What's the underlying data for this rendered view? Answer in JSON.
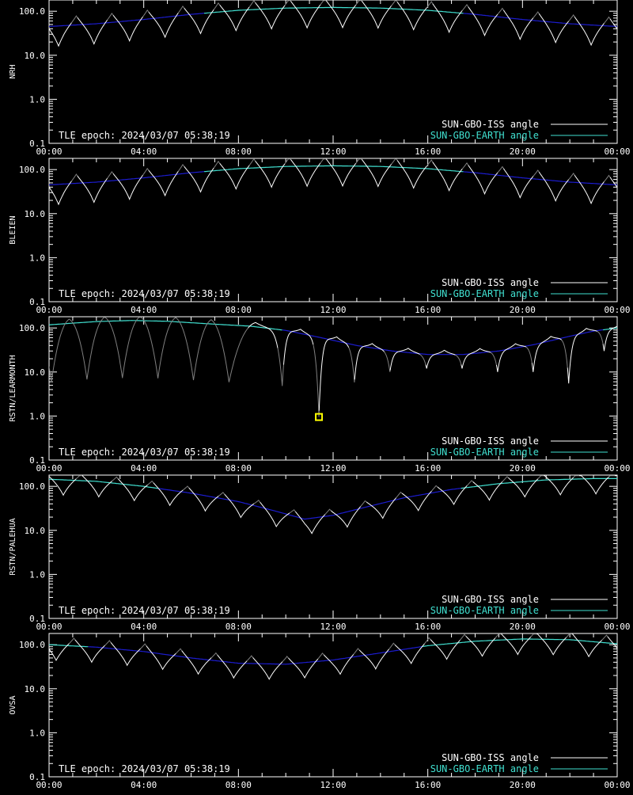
{
  "figure": {
    "background": "#000000",
    "axis_color": "#ffffff",
    "colors": {
      "iss_visible": "#ffffff",
      "iss_shadow": "#808080",
      "earth": "#40e0d0",
      "earth_low": "#1c1cd0",
      "marker": "#ffff00"
    }
  },
  "chart_data": [
    {
      "type": "line",
      "ylabel": "NRH",
      "x_tick_labels": [
        "00:00",
        "04:00",
        "08:00",
        "12:00",
        "16:00",
        "20:00",
        "00:00"
      ],
      "y_tick_labels": [
        "0.1",
        "1.0",
        "10.0",
        "100.0"
      ],
      "yscale": "log",
      "xlim_hours": [
        0,
        24
      ],
      "ylim": [
        0.1,
        180
      ],
      "annotation": "TLE epoch: 2024/03/07 05:38:19",
      "legend": [
        "SUN-GBO-ISS angle",
        "SUN-GBO-EARTH angle"
      ],
      "legend_position": "bottom-right",
      "series": [
        {
          "type": "earth",
          "hours": [
            0,
            2,
            4,
            6,
            8,
            10,
            12,
            14,
            16,
            18,
            20,
            22,
            24
          ],
          "values": [
            45,
            52,
            65,
            85,
            105,
            118,
            122,
            118,
            105,
            85,
            65,
            52,
            45
          ]
        },
        {
          "type": "iss",
          "valleys": [
            0.4,
            1.9,
            3.4,
            4.9,
            6.4,
            7.9,
            9.4,
            10.9,
            12.4,
            13.9,
            15.4,
            16.9,
            18.4,
            19.9,
            21.4,
            22.9
          ],
          "depth": 0.35,
          "peak_ratio": 1.6,
          "visible_from": 0,
          "visible_to": 24
        }
      ]
    },
    {
      "type": "line",
      "ylabel": "BLEIEN",
      "x_tick_labels": [
        "00:00",
        "04:00",
        "08:00",
        "12:00",
        "16:00",
        "20:00",
        "00:00"
      ],
      "y_tick_labels": [
        "0.1",
        "1.0",
        "10.0",
        "100.0"
      ],
      "yscale": "log",
      "xlim_hours": [
        0,
        24
      ],
      "ylim": [
        0.1,
        180
      ],
      "annotation": "TLE epoch: 2024/03/07 05:38:19",
      "legend": [
        "SUN-GBO-ISS angle",
        "SUN-GBO-EARTH angle"
      ],
      "legend_position": "bottom-right",
      "series": [
        {
          "type": "earth",
          "hours": [
            0,
            2,
            4,
            6,
            8,
            10,
            12,
            14,
            16,
            18,
            20,
            22,
            24
          ],
          "values": [
            45,
            52,
            65,
            85,
            105,
            118,
            122,
            118,
            105,
            85,
            65,
            52,
            45
          ]
        },
        {
          "type": "iss",
          "valleys": [
            0.4,
            1.9,
            3.4,
            4.9,
            6.4,
            7.9,
            9.4,
            10.9,
            12.4,
            13.9,
            15.4,
            16.9,
            18.4,
            19.9,
            21.4,
            22.9
          ],
          "depth": 0.35,
          "peak_ratio": 1.6,
          "visible_from": 0,
          "visible_to": 24
        }
      ]
    },
    {
      "type": "line",
      "ylabel": "RSTN/LEARMONTH",
      "x_tick_labels": [
        "00:00",
        "04:00",
        "08:00",
        "12:00",
        "16:00",
        "20:00",
        "00:00"
      ],
      "y_tick_labels": [
        "0.1",
        "1.0",
        "10.0",
        "100.0"
      ],
      "yscale": "log",
      "xlim_hours": [
        0,
        24
      ],
      "ylim": [
        0.1,
        180
      ],
      "annotation": "TLE epoch: 2024/03/07 05:38:19",
      "legend": [
        "SUN-GBO-ISS angle",
        "SUN-GBO-EARTH angle"
      ],
      "legend_position": "bottom-right",
      "marker": {
        "hour": 11.4,
        "value": 0.95
      },
      "series": [
        {
          "type": "earth",
          "hours": [
            0,
            2,
            3.5,
            5,
            7,
            8.5,
            10,
            11.5,
            13,
            14.5,
            16,
            17.5,
            19,
            20.5,
            22,
            23,
            24
          ],
          "values": [
            118,
            140,
            148,
            142,
            122,
            110,
            88,
            60,
            40,
            30,
            25,
            25,
            30,
            42,
            65,
            85,
            100
          ]
        },
        {
          "type": "iss",
          "valleys": [
            0.1,
            1.6,
            3.1,
            4.6,
            6.1,
            7.6,
            9.85,
            11.4,
            12.9,
            14.4,
            15.95,
            17.45,
            18.95,
            20.45,
            21.95,
            23.45
          ],
          "depth": 0.05,
          "peak_ratio": 1.25,
          "visible_from": 8.4,
          "visible_to": 24,
          "spikes": [
            [
              9.85,
              4.8
            ],
            [
              11.4,
              0.95
            ],
            [
              12.9,
              5.8
            ],
            [
              14.4,
              10
            ],
            [
              15.95,
              12
            ],
            [
              17.45,
              12
            ],
            [
              18.95,
              10
            ],
            [
              20.45,
              10
            ],
            [
              21.95,
              5.5
            ],
            [
              23.45,
              30
            ]
          ]
        }
      ]
    },
    {
      "type": "line",
      "ylabel": "RSTN/PALEHUA",
      "x_tick_labels": [
        "00:00",
        "04:00",
        "08:00",
        "12:00",
        "16:00",
        "20:00",
        "00:00"
      ],
      "y_tick_labels": [
        "0.1",
        "1.0",
        "10.0",
        "100.0"
      ],
      "yscale": "log",
      "xlim_hours": [
        0,
        24
      ],
      "ylim": [
        0.1,
        180
      ],
      "annotation": "TLE epoch: 2024/03/07 05:38:19",
      "legend": [
        "SUN-GBO-ISS angle",
        "SUN-GBO-EARTH angle"
      ],
      "legend_position": "bottom-right",
      "series": [
        {
          "type": "earth",
          "hours": [
            0,
            2,
            4,
            6,
            8,
            9.5,
            10.8,
            12,
            13.5,
            15,
            17,
            19,
            21,
            23,
            24
          ],
          "values": [
            145,
            130,
            100,
            70,
            45,
            28,
            18,
            22,
            35,
            55,
            85,
            115,
            140,
            150,
            150
          ]
        },
        {
          "type": "iss",
          "valleys": [
            0.6,
            2.1,
            3.6,
            5.1,
            6.6,
            8.1,
            9.6,
            11.1,
            12.6,
            14.1,
            15.6,
            17.1,
            18.6,
            20.1,
            21.6,
            23.1
          ],
          "depth": 0.45,
          "peak_ratio": 1.4,
          "visible_from": 0,
          "visible_to": 24
        }
      ]
    },
    {
      "type": "line",
      "ylabel": "OVSA",
      "x_tick_labels": [
        "00:00",
        "04:00",
        "08:00",
        "12:00",
        "16:00",
        "20:00",
        "00:00"
      ],
      "y_tick_labels": [
        "0.1",
        "1.0",
        "10.0",
        "100.0"
      ],
      "yscale": "log",
      "xlim_hours": [
        0,
        24
      ],
      "ylim": [
        0.1,
        180
      ],
      "annotation": "TLE epoch: 2024/03/07 05:38:19",
      "legend": [
        "SUN-GBO-ISS angle",
        "SUN-GBO-EARTH angle"
      ],
      "legend_position": "bottom-right",
      "series": [
        {
          "type": "earth",
          "hours": [
            0,
            2,
            4,
            6,
            8,
            10,
            12,
            14,
            16,
            18,
            20,
            22,
            24
          ],
          "values": [
            100,
            88,
            70,
            50,
            38,
            36,
            45,
            65,
            95,
            120,
            135,
            130,
            105
          ]
        },
        {
          "type": "iss",
          "valleys": [
            0.3,
            1.8,
            3.3,
            4.8,
            6.3,
            7.8,
            9.3,
            10.8,
            12.3,
            13.8,
            15.3,
            16.8,
            18.3,
            19.8,
            21.3,
            22.8
          ],
          "depth": 0.45,
          "peak_ratio": 1.5,
          "visible_from": 0,
          "visible_to": 24
        }
      ]
    }
  ]
}
